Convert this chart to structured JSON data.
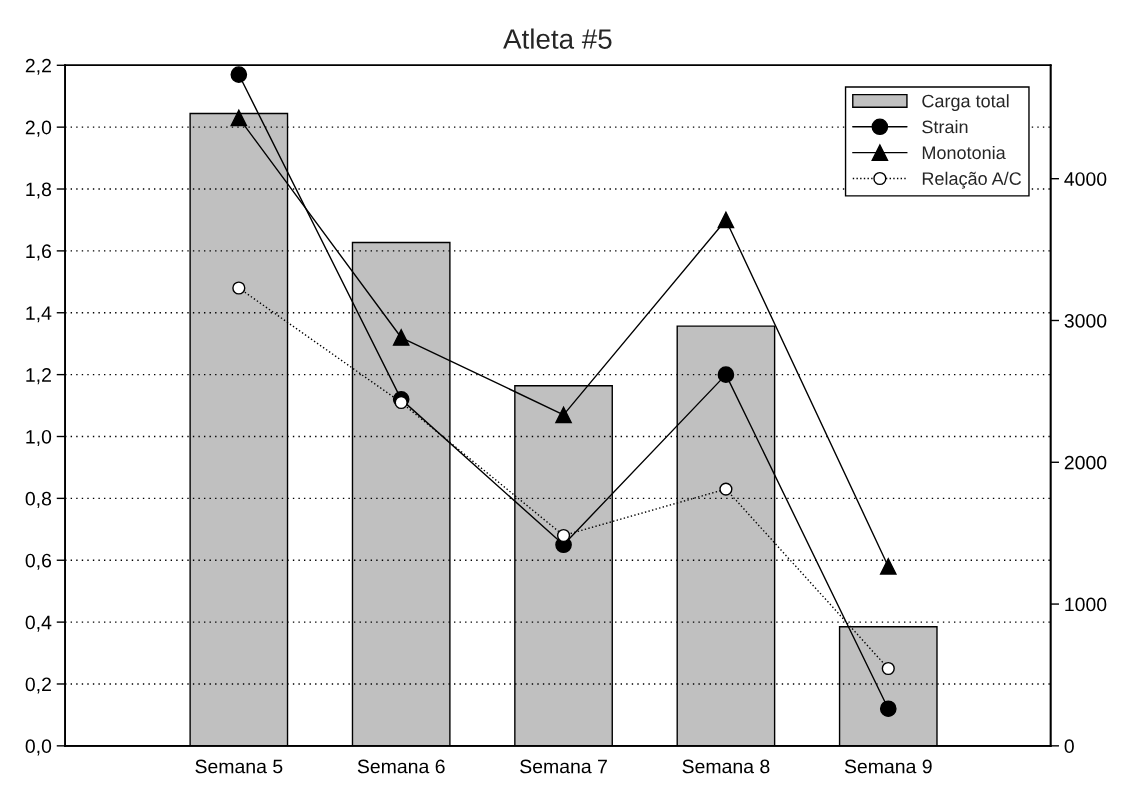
{
  "chart_data": {
    "type": "bar",
    "title": "Atleta #5",
    "categories": [
      "Semana 5",
      "Semana 6",
      "Semana 7",
      "Semana 8",
      "Semana 9"
    ],
    "series": [
      {
        "name": "Carga total",
        "axis": "y2",
        "color": "#c0c0c0",
        "values": [
          4460,
          3550,
          2540,
          2960,
          840
        ]
      },
      {
        "name": "Strain",
        "type": "line",
        "color": "#000000",
        "marker": "circle",
        "line_style": "solid",
        "values": [
          2.17,
          1.12,
          0.65,
          1.2,
          0.12
        ]
      },
      {
        "name": "Monotonia",
        "type": "line",
        "color": "#000000",
        "marker": "triangle",
        "line_style": "solid",
        "values": [
          2.03,
          1.32,
          1.07,
          1.7,
          0.58
        ]
      },
      {
        "name": "Relação A/C",
        "type": "line",
        "color": "#ffffff",
        "marker": "circle",
        "line_style": "dotted",
        "values": [
          1.48,
          1.11,
          0.68,
          0.83,
          0.25
        ]
      }
    ],
    "ylim": [
      0,
      2.2
    ],
    "yticks": [
      {
        "value": 0,
        "label": "0,0"
      },
      {
        "value": 0.2,
        "label": "0,2"
      },
      {
        "value": 0.4,
        "label": "0,4"
      },
      {
        "value": 0.6,
        "label": "0,6"
      },
      {
        "value": 0.8,
        "label": "0,8"
      },
      {
        "value": 1.0,
        "label": "1,0"
      },
      {
        "value": 1.2,
        "label": "1,2"
      },
      {
        "value": 1.4,
        "label": "1,4"
      },
      {
        "value": 1.6,
        "label": "1,6"
      },
      {
        "value": 1.8,
        "label": "1,8"
      },
      {
        "value": 2.0,
        "label": "2,0"
      },
      {
        "value": 2.2,
        "label": "2,2"
      }
    ],
    "y2lim": [
      0,
      4800
    ],
    "y2ticks": [
      0,
      1000,
      2000,
      3000,
      4000
    ],
    "grid": "y",
    "legend": "top right"
  }
}
